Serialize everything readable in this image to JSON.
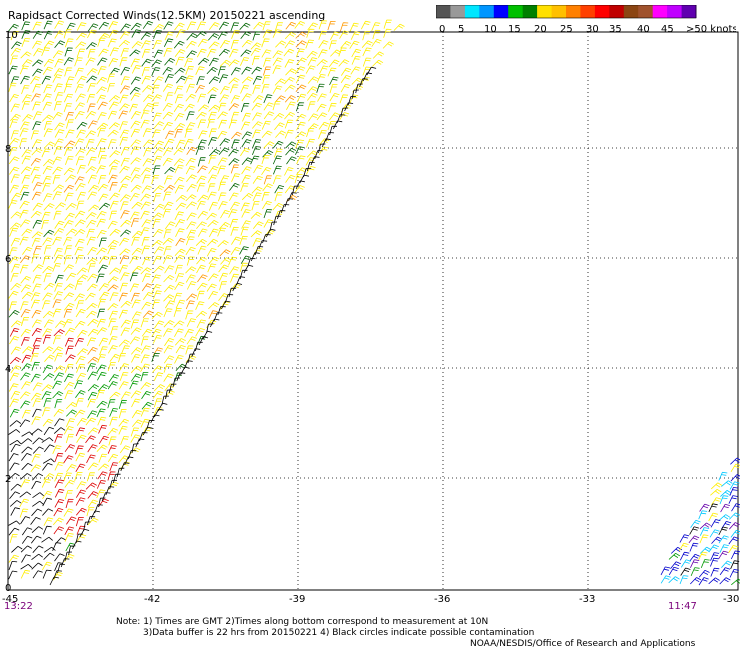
{
  "title": "Rapidsact Corrected Winds(12.5KM) 20150221 ascending",
  "legend": {
    "labels": [
      "0",
      "5",
      "10",
      "15",
      "20",
      "25",
      "30",
      "35",
      "40",
      "45",
      ">50 knots"
    ],
    "colors": [
      "#555555",
      "#999999",
      "#00e6ff",
      "#0096ff",
      "#0000ff",
      "#00c000",
      "#008000",
      "#ffe000",
      "#ffc000",
      "#ff8000",
      "#ff4000",
      "#ff0000",
      "#c00000",
      "#8b4513",
      "#a0522d",
      "#ff00ff",
      "#c000ff",
      "#6000b0"
    ]
  },
  "axes": {
    "x_labels": [
      "-45",
      "-42",
      "-39",
      "-36",
      "-33",
      "-30"
    ],
    "y_labels": [
      "0",
      "2",
      "4",
      "6",
      "8",
      "10"
    ]
  },
  "times": {
    "left": "13:22",
    "right": "11:47"
  },
  "notes": {
    "line1": "Note: 1) Times are GMT 2)Times along bottom correspond to measurement at 10N",
    "line2": "3)Data buffer is 22 hrs from 20150221 4) Black circles indicate possible contamination",
    "line3": "NOAA/NESDIS/Office of Research and Applications"
  },
  "barb_colors": {
    "calm": "#000000",
    "light_blue": "#00c8ff",
    "blue": "#0000cc",
    "green": "#009900",
    "dark_green": "#006400",
    "yellow": "#ffee00",
    "orange": "#ff9900",
    "red": "#dd0000",
    "purple": "#6600aa"
  }
}
